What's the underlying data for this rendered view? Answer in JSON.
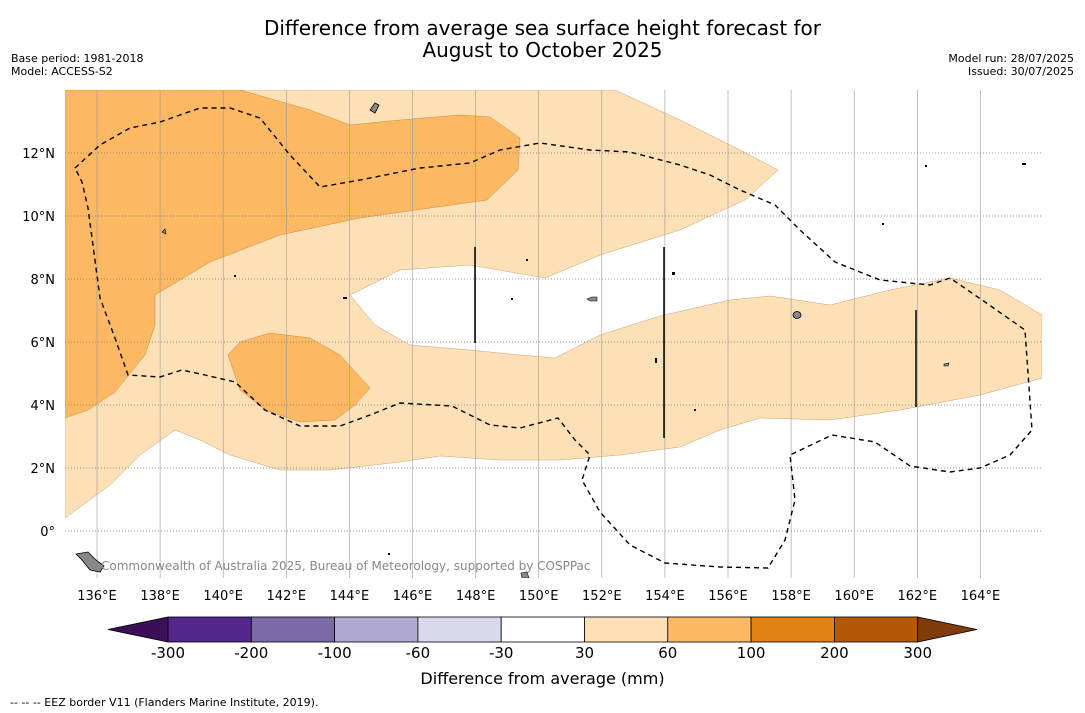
{
  "header": {
    "title_line1": "Difference from average sea surface height forecast for",
    "title_line2": "August to October 2025",
    "base_period": "Base period: 1981-2018",
    "model": "Model: ACCESS-S2",
    "model_run": "Model run: 28/07/2025",
    "issued": "Issued: 30/07/2025"
  },
  "map": {
    "lon_labels": [
      "136°E",
      "138°E",
      "140°E",
      "142°E",
      "144°E",
      "146°E",
      "148°E",
      "150°E",
      "152°E",
      "154°E",
      "156°E",
      "158°E",
      "160°E",
      "162°E",
      "164°E"
    ],
    "lat_labels": [
      "12°N",
      "10°N",
      "8°N",
      "6°N",
      "4°N",
      "2°N",
      "0°"
    ],
    "copyright": "Commonwealth of Australia 2025, Bureau of Meteorology, supported by COSPPac"
  },
  "colorbar": {
    "title": "Difference from average (mm)",
    "ticks": [
      "-300",
      "-200",
      "-100",
      "-60",
      "-30",
      "30",
      "60",
      "100",
      "200",
      "300"
    ],
    "colors": [
      "#3b0f55",
      "#54278f",
      "#7b6aa8",
      "#b0a9d0",
      "#d8daeb",
      "#ffffff",
      "#fee0b6",
      "#fdb863",
      "#e08214",
      "#b35806",
      "#7f3b08"
    ]
  },
  "footer": {
    "eez_note": "--  --  -- EEZ border V11 (Flanders Marine Institute, 2019)."
  }
}
